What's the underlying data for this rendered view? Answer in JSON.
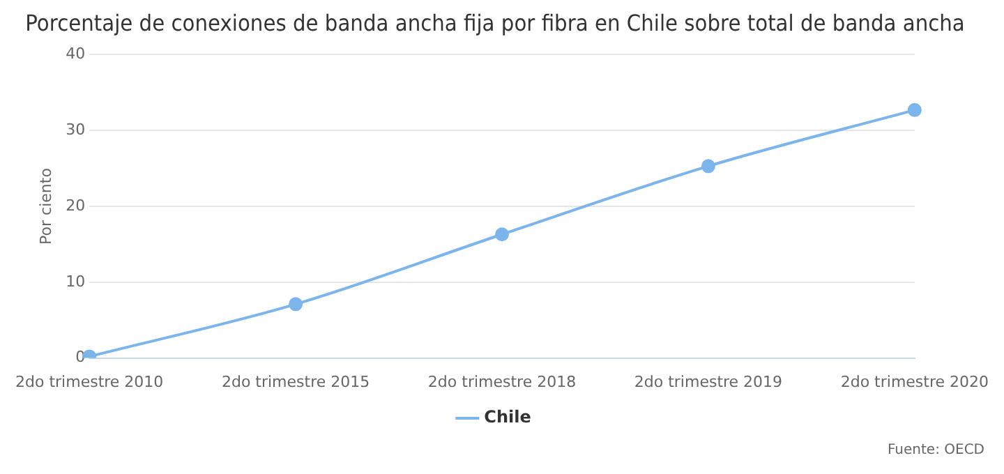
{
  "chart_data": {
    "type": "line",
    "title": "Porcentaje de conexiones de banda ancha fija por fibra en Chile sobre total de banda ancha",
    "ylabel": "Por ciento",
    "categories": [
      "2do trimestre 2010",
      "2do trimestre 2015",
      "2do trimestre 2018",
      "2do trimestre 2019",
      "2do trimestre 2020"
    ],
    "series": [
      {
        "name": "Chile",
        "color": "#7cb5ec",
        "values": [
          0.2,
          7.1,
          16.3,
          25.3,
          32.7
        ]
      }
    ],
    "ylim": [
      0,
      40
    ],
    "yticks": [
      0,
      10,
      20,
      30,
      40
    ],
    "grid": "y",
    "legend": "bottom",
    "marker": "circle",
    "line_style": "solid",
    "annotations": [
      "Fuente: OECD"
    ]
  }
}
